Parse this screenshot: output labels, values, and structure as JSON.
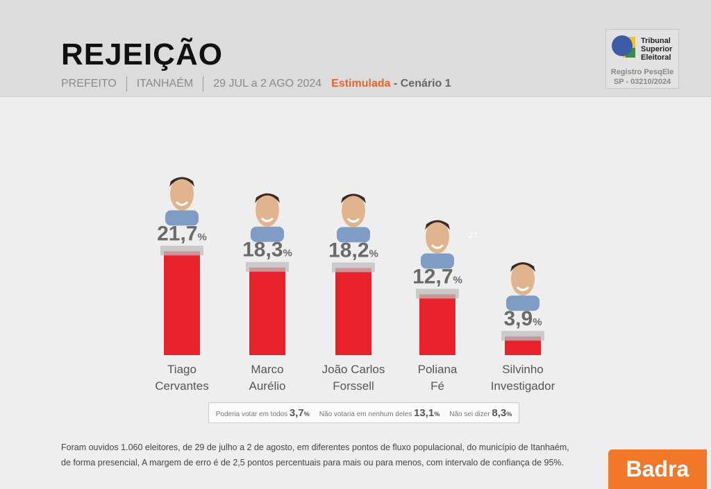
{
  "header": {
    "title": "REJEIÇÃO",
    "office": "PREFEITO",
    "city": "ITANHAÉM",
    "dates": "29 JUL a 2 AGO 2024",
    "type": "Estimulada",
    "scenario": "- Cenário 1"
  },
  "tse": {
    "name_line1": "Tribunal",
    "name_line2": "Superior",
    "name_line3": "Eleitoral",
    "registry_label": "Registro PesqEle",
    "registry_number": "SP - 03210/2024"
  },
  "chart_data": {
    "type": "bar",
    "title": "Rejeição",
    "categories": [
      "Tiago Cervantes",
      "Marco Aurélio",
      "João Carlos Forssell",
      "Poliana Fé",
      "Silvinho Investigador"
    ],
    "name_lines": [
      [
        "Tiago",
        "Cervantes"
      ],
      [
        "Marco",
        "Aurélio"
      ],
      [
        "João Carlos",
        "Forssell"
      ],
      [
        "Poliana",
        "Fé"
      ],
      [
        "Silvinho",
        "Investigador"
      ]
    ],
    "values": [
      21.7,
      18.3,
      18.2,
      12.7,
      3.9
    ],
    "labels": [
      "21,7",
      "18,3",
      "18,2",
      "12,7",
      "3,9"
    ],
    "unit": "%",
    "bar_color": "#e8212a",
    "ylim": [
      0,
      25
    ]
  },
  "stray_label": "27",
  "legend": {
    "items": [
      {
        "label": "Poderia votar em todos",
        "value": "3,7",
        "unit": "%"
      },
      {
        "label": "Não votaria em nenhum deles",
        "value": "13,1",
        "unit": "%"
      },
      {
        "label": "Não sei dizer",
        "value": "8,3",
        "unit": "%"
      }
    ]
  },
  "footer": {
    "line1": "Foram ouvidos 1.060 eleitores, de 29 de julho a 2 de agosto, em diferentes pontos de fluxo populacional, do município de Itanhaém,",
    "line2": "de forma presencial, A margem de erro é de 2,5 pontos percentuais para mais ou para menos, com intervalo de confiança de 95%."
  },
  "brand": "Badra"
}
